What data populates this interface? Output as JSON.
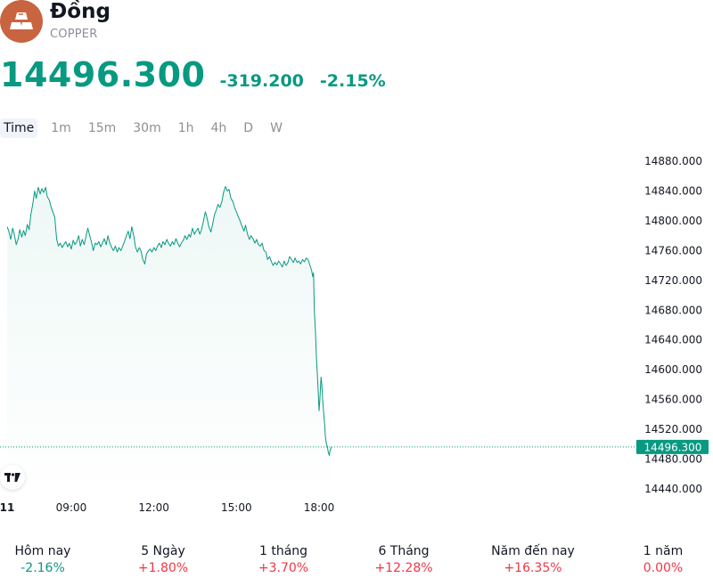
{
  "asset": {
    "name": "Đồng",
    "ticker": "COPPER",
    "logo_color": "#c8643f"
  },
  "quote": {
    "price": "14496.300",
    "change": "-319.200",
    "change_percent": "-2.15%",
    "color": "#089981"
  },
  "intervals": [
    {
      "label": "Time",
      "active": true
    },
    {
      "label": "1m",
      "active": false
    },
    {
      "label": "15m",
      "active": false
    },
    {
      "label": "30m",
      "active": false
    },
    {
      "label": "1h",
      "active": false
    },
    {
      "label": "4h",
      "active": false
    },
    {
      "label": "D",
      "active": false
    },
    {
      "label": "W",
      "active": false
    }
  ],
  "chart_data": {
    "type": "area",
    "y_ticks": [
      "14880.000",
      "14840.000",
      "14800.000",
      "14760.000",
      "14720.000",
      "14680.000",
      "14640.000",
      "14600.000",
      "14560.000",
      "14520.000",
      "14480.000",
      "14440.000"
    ],
    "ylim": [
      14440,
      14880
    ],
    "x_ticks": [
      {
        "label": "11",
        "bold": true,
        "hour": 6.67
      },
      {
        "label": "09:00",
        "bold": false,
        "hour": 9
      },
      {
        "label": "12:00",
        "bold": false,
        "hour": 12
      },
      {
        "label": "15:00",
        "bold": false,
        "hour": 15
      },
      {
        "label": "18:00",
        "bold": false,
        "hour": 18
      }
    ],
    "xlim_hours": [
      6.67,
      33.2
    ],
    "last_price_label": "14496.300",
    "last_price": 14496.3,
    "line_color": "#089981",
    "series": [
      {
        "values": [
          [
            6.67,
            14792
          ],
          [
            6.73,
            14786
          ],
          [
            6.8,
            14775
          ],
          [
            6.87,
            14790
          ],
          [
            6.93,
            14782
          ],
          [
            7.0,
            14768
          ],
          [
            7.07,
            14776
          ],
          [
            7.13,
            14788
          ],
          [
            7.2,
            14778
          ],
          [
            7.27,
            14787
          ],
          [
            7.33,
            14780
          ],
          [
            7.4,
            14795
          ],
          [
            7.47,
            14788
          ],
          [
            7.53,
            14808
          ],
          [
            7.6,
            14822
          ],
          [
            7.67,
            14840
          ],
          [
            7.73,
            14830
          ],
          [
            7.8,
            14845
          ],
          [
            7.87,
            14836
          ],
          [
            7.93,
            14843
          ],
          [
            8.0,
            14838
          ],
          [
            8.07,
            14845
          ],
          [
            8.13,
            14832
          ],
          [
            8.2,
            14828
          ],
          [
            8.27,
            14818
          ],
          [
            8.33,
            14812
          ],
          [
            8.4,
            14805
          ],
          [
            8.47,
            14775
          ],
          [
            8.53,
            14766
          ],
          [
            8.6,
            14770
          ],
          [
            8.67,
            14764
          ],
          [
            8.73,
            14768
          ],
          [
            8.8,
            14772
          ],
          [
            8.87,
            14765
          ],
          [
            8.93,
            14770
          ],
          [
            9.0,
            14762
          ],
          [
            9.07,
            14774
          ],
          [
            9.13,
            14768
          ],
          [
            9.2,
            14772
          ],
          [
            9.27,
            14780
          ],
          [
            9.33,
            14766
          ],
          [
            9.4,
            14775
          ],
          [
            9.47,
            14768
          ],
          [
            9.53,
            14778
          ],
          [
            9.6,
            14790
          ],
          [
            9.67,
            14780
          ],
          [
            9.73,
            14772
          ],
          [
            9.8,
            14760
          ],
          [
            9.87,
            14770
          ],
          [
            9.93,
            14768
          ],
          [
            10.0,
            14772
          ],
          [
            10.07,
            14765
          ],
          [
            10.13,
            14770
          ],
          [
            10.2,
            14776
          ],
          [
            10.27,
            14768
          ],
          [
            10.33,
            14780
          ],
          [
            10.4,
            14770
          ],
          [
            10.47,
            14764
          ],
          [
            10.53,
            14760
          ],
          [
            10.6,
            14766
          ],
          [
            10.67,
            14758
          ],
          [
            10.73,
            14764
          ],
          [
            10.8,
            14760
          ],
          [
            10.87,
            14766
          ],
          [
            10.93,
            14772
          ],
          [
            11.0,
            14780
          ],
          [
            11.07,
            14786
          ],
          [
            11.13,
            14776
          ],
          [
            11.2,
            14792
          ],
          [
            11.27,
            14780
          ],
          [
            11.33,
            14765
          ],
          [
            11.4,
            14758
          ],
          [
            11.47,
            14764
          ],
          [
            11.53,
            14760
          ],
          [
            11.6,
            14748
          ],
          [
            11.67,
            14742
          ],
          [
            11.73,
            14755
          ],
          [
            11.8,
            14760
          ],
          [
            11.87,
            14762
          ],
          [
            11.93,
            14758
          ],
          [
            12.0,
            14764
          ],
          [
            12.07,
            14760
          ],
          [
            12.13,
            14766
          ],
          [
            12.2,
            14770
          ],
          [
            12.27,
            14764
          ],
          [
            12.33,
            14772
          ],
          [
            12.4,
            14768
          ],
          [
            12.47,
            14775
          ],
          [
            12.53,
            14770
          ],
          [
            12.6,
            14766
          ],
          [
            12.67,
            14772
          ],
          [
            12.73,
            14768
          ],
          [
            12.8,
            14776
          ],
          [
            12.87,
            14770
          ],
          [
            12.93,
            14765
          ],
          [
            13.0,
            14770
          ],
          [
            13.07,
            14774
          ],
          [
            13.13,
            14780
          ],
          [
            13.2,
            14775
          ],
          [
            13.27,
            14782
          ],
          [
            13.33,
            14778
          ],
          [
            13.4,
            14790
          ],
          [
            13.47,
            14782
          ],
          [
            13.53,
            14786
          ],
          [
            13.6,
            14790
          ],
          [
            13.67,
            14782
          ],
          [
            13.73,
            14788
          ],
          [
            13.8,
            14800
          ],
          [
            13.87,
            14812
          ],
          [
            13.93,
            14804
          ],
          [
            14.0,
            14792
          ],
          [
            14.07,
            14785
          ],
          [
            14.13,
            14795
          ],
          [
            14.2,
            14808
          ],
          [
            14.27,
            14815
          ],
          [
            14.33,
            14822
          ],
          [
            14.4,
            14818
          ],
          [
            14.47,
            14826
          ],
          [
            14.53,
            14838
          ],
          [
            14.6,
            14846
          ],
          [
            14.67,
            14840
          ],
          [
            14.73,
            14842
          ],
          [
            14.8,
            14830
          ],
          [
            14.87,
            14826
          ],
          [
            14.93,
            14818
          ],
          [
            15.0,
            14812
          ],
          [
            15.07,
            14805
          ],
          [
            15.13,
            14800
          ],
          [
            15.2,
            14793
          ],
          [
            15.27,
            14786
          ],
          [
            15.33,
            14794
          ],
          [
            15.4,
            14782
          ],
          [
            15.47,
            14775
          ],
          [
            15.53,
            14780
          ],
          [
            15.6,
            14776
          ],
          [
            15.67,
            14770
          ],
          [
            15.73,
            14775
          ],
          [
            15.8,
            14768
          ],
          [
            15.87,
            14766
          ],
          [
            15.93,
            14770
          ],
          [
            16.0,
            14760
          ],
          [
            16.07,
            14758
          ],
          [
            16.13,
            14748
          ],
          [
            16.2,
            14752
          ],
          [
            16.27,
            14745
          ],
          [
            16.33,
            14740
          ],
          [
            16.4,
            14744
          ],
          [
            16.47,
            14741
          ],
          [
            16.53,
            14746
          ],
          [
            16.6,
            14742
          ],
          [
            16.67,
            14738
          ],
          [
            16.73,
            14746
          ],
          [
            16.8,
            14740
          ],
          [
            16.87,
            14744
          ],
          [
            16.93,
            14752
          ],
          [
            17.0,
            14748
          ],
          [
            17.07,
            14744
          ],
          [
            17.13,
            14750
          ],
          [
            17.2,
            14744
          ],
          [
            17.27,
            14746
          ],
          [
            17.33,
            14742
          ],
          [
            17.4,
            14748
          ],
          [
            17.47,
            14745
          ],
          [
            17.53,
            14750
          ],
          [
            17.6,
            14748
          ],
          [
            17.67,
            14740
          ],
          [
            17.73,
            14733
          ],
          [
            17.77,
            14725
          ],
          [
            17.8,
            14730
          ],
          [
            17.83,
            14680
          ],
          [
            17.87,
            14650
          ],
          [
            17.9,
            14620
          ],
          [
            17.93,
            14600
          ],
          [
            17.97,
            14570
          ],
          [
            18.0,
            14545
          ],
          [
            18.03,
            14560
          ],
          [
            18.07,
            14590
          ],
          [
            18.1,
            14580
          ],
          [
            18.13,
            14560
          ],
          [
            18.17,
            14540
          ],
          [
            18.2,
            14528
          ],
          [
            18.23,
            14510
          ],
          [
            18.27,
            14500
          ],
          [
            18.3,
            14497
          ],
          [
            18.33,
            14490
          ],
          [
            18.37,
            14485
          ],
          [
            18.4,
            14492
          ],
          [
            18.45,
            14496.3
          ]
        ]
      }
    ]
  },
  "performance": [
    {
      "label": "Hôm nay",
      "value": "-2.16%",
      "color": "#089981"
    },
    {
      "label": "5 Ngày",
      "value": "+1.80%",
      "color": "#f23645"
    },
    {
      "label": "1 tháng",
      "value": "+3.70%",
      "color": "#f23645"
    },
    {
      "label": "6 Tháng",
      "value": "+12.28%",
      "color": "#f23645"
    },
    {
      "label": "Năm đến nay",
      "value": "+16.35%",
      "color": "#f23645"
    },
    {
      "label": "1 năm",
      "value": "0.00%",
      "color": "#f23645"
    }
  ]
}
